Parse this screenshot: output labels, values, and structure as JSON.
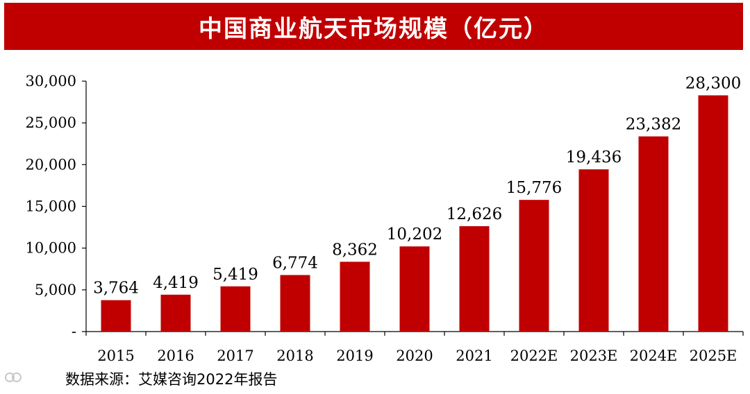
{
  "title": "中国商业航天市场规模（亿元）",
  "source": "数据来源：艾媒咨询2022年报告",
  "colors": {
    "title_bg": "#c00000",
    "bar": "#c00000",
    "axis": "#000000"
  },
  "chart_data": {
    "type": "bar",
    "title": "中国商业航天市场规模（亿元）",
    "categories": [
      "2015",
      "2016",
      "2017",
      "2018",
      "2019",
      "2020",
      "2021",
      "2022E",
      "2023E",
      "2024E",
      "2025E"
    ],
    "values": [
      3764,
      4419,
      5419,
      6774,
      8362,
      10202,
      12626,
      15776,
      19436,
      23382,
      28300
    ],
    "data_labels": [
      "3,764",
      "4,419",
      "5,419",
      "6,774",
      "8,362",
      "10,202",
      "12,626",
      "15,776",
      "19,436",
      "23,382",
      "28,300"
    ],
    "yticks": [
      0,
      5000,
      10000,
      15000,
      20000,
      25000,
      30000
    ],
    "ytick_labels": [
      "-",
      "5,000",
      "10,000",
      "15,000",
      "20,000",
      "25,000",
      "30,000"
    ],
    "ylim": [
      0,
      30000
    ],
    "xlabel": "",
    "ylabel": "",
    "grid": false
  }
}
